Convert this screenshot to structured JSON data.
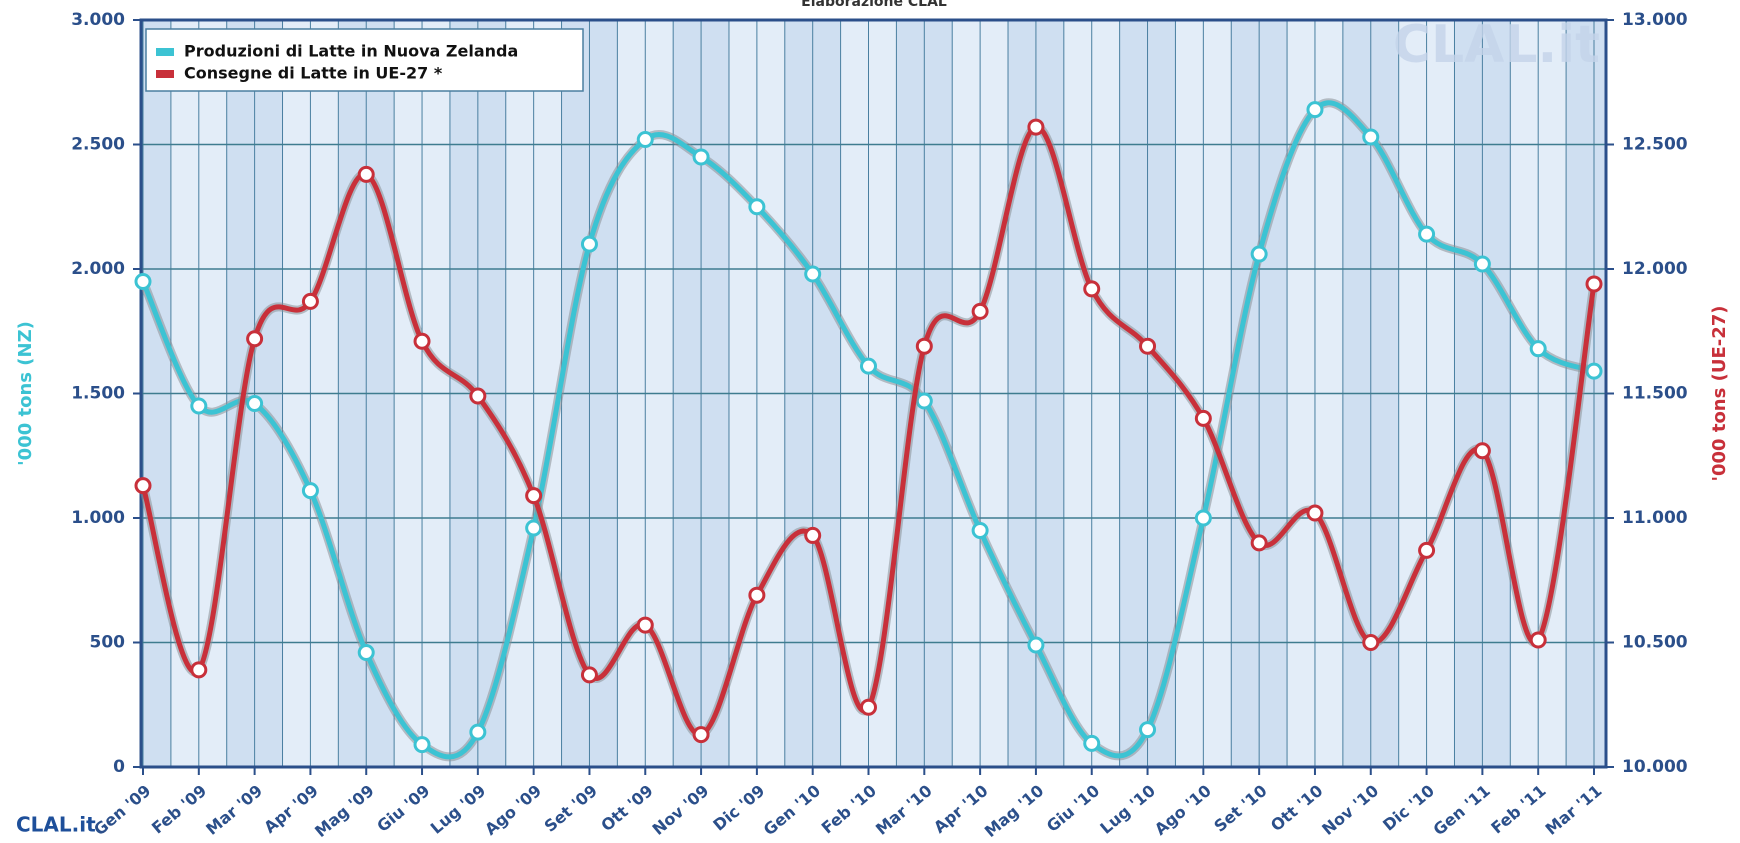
{
  "chart_data": {
    "type": "line",
    "subtitle": "Elaborazione CLAL",
    "logo": "CLAL.it",
    "watermark": "CLAL.it",
    "categories": [
      "Gen '09",
      "Feb '09",
      "Mar '09",
      "Apr '09",
      "Mag '09",
      "Giu '09",
      "Lug '09",
      "Ago '09",
      "Set '09",
      "Ott '09",
      "Nov '09",
      "Dic '09",
      "Gen '10",
      "Feb '10",
      "Mar '10",
      "Apr '10",
      "Mag '10",
      "Giu '10",
      "Lug '10",
      "Ago '10",
      "Set '10",
      "Ott '10",
      "Nov '10",
      "Dic '10",
      "Gen '11",
      "Feb '11",
      "Mar '11"
    ],
    "y_label": "'000 tons (NZ)",
    "y2_label": "'000 tons (UE-27)",
    "ylim": [
      0,
      3000
    ],
    "yticks": [
      {
        "value": 0,
        "label": "0"
      },
      {
        "value": 500,
        "label": "500"
      },
      {
        "value": 1000,
        "label": "1.000"
      },
      {
        "value": 1500,
        "label": "1.500"
      },
      {
        "value": 2000,
        "label": "2.000"
      },
      {
        "value": 2500,
        "label": "2.500"
      },
      {
        "value": 3000,
        "label": "3.000"
      }
    ],
    "y2lim": [
      10000,
      13000
    ],
    "y2ticks": [
      {
        "value": 10000,
        "label": "10.000"
      },
      {
        "value": 10500,
        "label": "10.500"
      },
      {
        "value": 11000,
        "label": "11.000"
      },
      {
        "value": 11500,
        "label": "11.500"
      },
      {
        "value": 12000,
        "label": "12.000"
      },
      {
        "value": 12500,
        "label": "12.500"
      },
      {
        "value": 13000,
        "label": "13.000"
      }
    ],
    "grid": true,
    "legend": "top-left",
    "series": [
      {
        "name": "Produzioni di Latte in Nuova Zelanda",
        "color": "#3cc3d3",
        "values": [
          1950,
          1450,
          1460,
          1110,
          460,
          90,
          140,
          960,
          2100,
          2520,
          2450,
          2250,
          1980,
          1610,
          1470,
          950,
          490,
          95,
          150,
          1000,
          2060,
          2640,
          2530,
          2140,
          2020,
          1680,
          1590
        ]
      },
      {
        "name": "Consegne di Latte in UE-27 *",
        "color": "#c8303a",
        "axis": "y2",
        "values": [
          11130,
          10390,
          11720,
          11870,
          12380,
          11710,
          11490,
          11090,
          10370,
          10570,
          10130,
          10690,
          10930,
          10240,
          11690,
          11830,
          12570,
          11920,
          11690,
          11400,
          10900,
          11020,
          10500,
          10870,
          11270,
          10510,
          11940
        ]
      }
    ]
  }
}
